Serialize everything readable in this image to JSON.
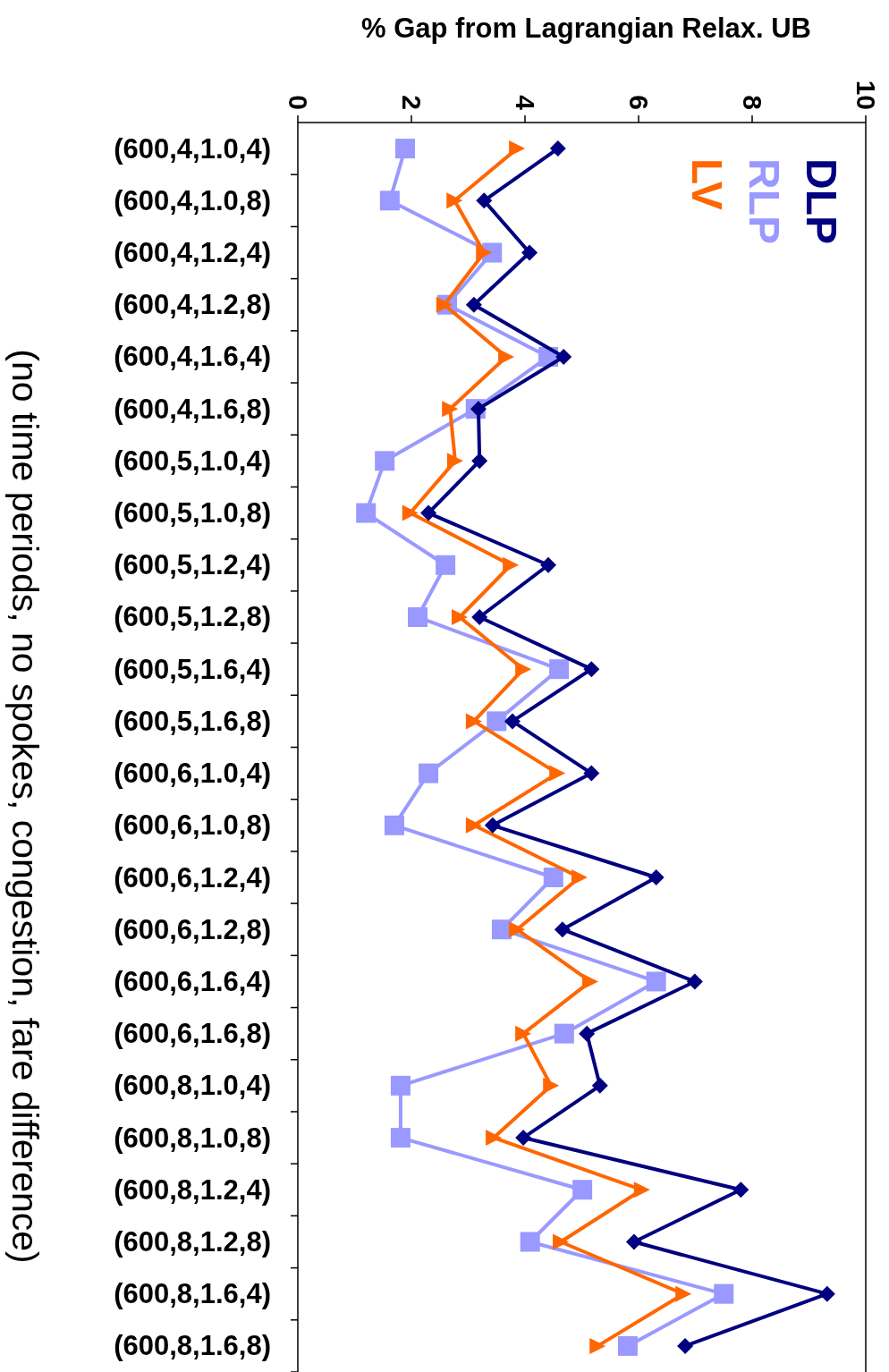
{
  "chart_data": {
    "type": "line",
    "orientation": "horizontal",
    "xlabel": "% Gap from Lagrangian Relax. UB",
    "ylabel": "(no time periods, no spokes, congestion, fare difference)",
    "categories": [
      "(600,4,1.0,4)",
      "(600,4,1.0,8)",
      "(600,4,1.2,4)",
      "(600,4,1.2,8)",
      "(600,4,1.6,4)",
      "(600,4,1.6,8)",
      "(600,5,1.0,4)",
      "(600,5,1.0,8)",
      "(600,5,1.2,4)",
      "(600,5,1.2,8)",
      "(600,5,1.6,4)",
      "(600,5,1.6,8)",
      "(600,6,1.0,4)",
      "(600,6,1.0,8)",
      "(600,6,1.2,4)",
      "(600,6,1.2,8)",
      "(600,6,1.6,4)",
      "(600,6,1.6,8)",
      "(600,8,1.0,4)",
      "(600,8,1.0,8)",
      "(600,8,1.2,4)",
      "(600,8,1.2,8)",
      "(600,8,1.6,4)",
      "(600,8,1.6,8)"
    ],
    "series": [
      {
        "name": "DLP",
        "color": "#000080",
        "marker": "diamond",
        "values": [
          4.58,
          3.28,
          4.08,
          3.1,
          4.68,
          3.18,
          3.2,
          2.3,
          4.41,
          3.2,
          5.17,
          3.78,
          5.17,
          3.43,
          6.31,
          4.66,
          6.99,
          5.09,
          5.32,
          3.97,
          7.8,
          5.92,
          9.32,
          6.82
        ]
      },
      {
        "name": "RLP",
        "color": "#9999ff",
        "marker": "square",
        "values": [
          1.89,
          1.62,
          3.42,
          2.63,
          4.41,
          3.13,
          1.53,
          1.2,
          2.6,
          2.11,
          4.6,
          3.5,
          2.3,
          1.7,
          4.5,
          3.59,
          6.31,
          4.69,
          1.81,
          1.81,
          5.01,
          4.09,
          7.5,
          5.81
        ]
      },
      {
        "name": "LV",
        "color": "#ff6600",
        "marker": "triangle",
        "values": [
          3.86,
          2.76,
          3.28,
          2.58,
          3.67,
          2.68,
          2.77,
          1.98,
          3.75,
          2.85,
          3.97,
          3.1,
          4.57,
          3.1,
          4.96,
          3.86,
          5.15,
          3.97,
          4.46,
          3.45,
          6.06,
          4.63,
          6.79,
          5.28
        ]
      }
    ],
    "xlim": [
      0,
      10
    ],
    "xticks": [
      0,
      2,
      4,
      6,
      8,
      10
    ],
    "legend": "top right",
    "line_style": "solid"
  }
}
